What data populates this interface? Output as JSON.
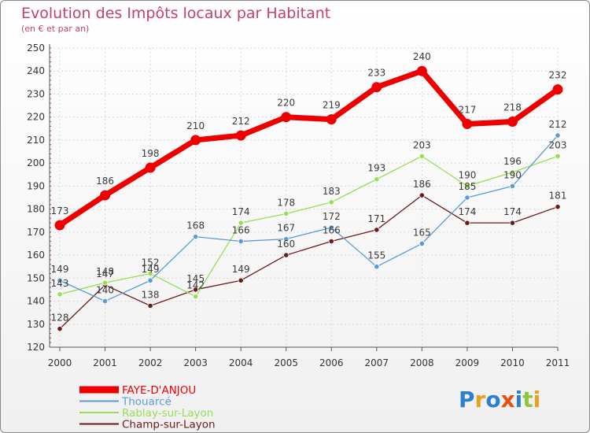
{
  "chart_data": {
    "type": "line",
    "title": "Evolution des Impôts locaux par Habitant",
    "subtitle": "(en € et par an)",
    "categories": [
      "2000",
      "2001",
      "2002",
      "2003",
      "2004",
      "2005",
      "2006",
      "2007",
      "2008",
      "2009",
      "2010",
      "2011"
    ],
    "ylim": [
      120,
      250
    ],
    "yticks": [
      120,
      130,
      140,
      150,
      160,
      170,
      180,
      190,
      200,
      210,
      220,
      230,
      240,
      250
    ],
    "grid": true,
    "legend_position": "bottom-left",
    "series": [
      {
        "name": "Champ-sur-Layon",
        "color": "#6b1a1a",
        "values": [
          128,
          147,
          138,
          145,
          149,
          160,
          166,
          171,
          186,
          174,
          174,
          181
        ]
      },
      {
        "name": "Rablay-sur-Layon",
        "color": "#99dd55",
        "values": [
          143,
          148,
          152,
          142,
          174,
          178,
          183,
          193,
          203,
          190,
          196,
          203
        ]
      },
      {
        "name": "Thouarcé",
        "color": "#5b9bd5",
        "values": [
          149,
          140,
          149,
          168,
          166,
          167,
          172,
          155,
          165,
          185,
          190,
          212
        ]
      },
      {
        "name": "FAYE-D'ANJOU",
        "color": "#ee0000",
        "values": [
          173,
          186,
          198,
          210,
          212,
          220,
          219,
          233,
          240,
          217,
          218,
          232
        ]
      }
    ],
    "legend_order": [
      "FAYE-D'ANJOU",
      "Thouarcé",
      "Rablay-sur-Layon",
      "Champ-sur-Layon"
    ]
  },
  "logo": {
    "text": "Proxiti"
  }
}
